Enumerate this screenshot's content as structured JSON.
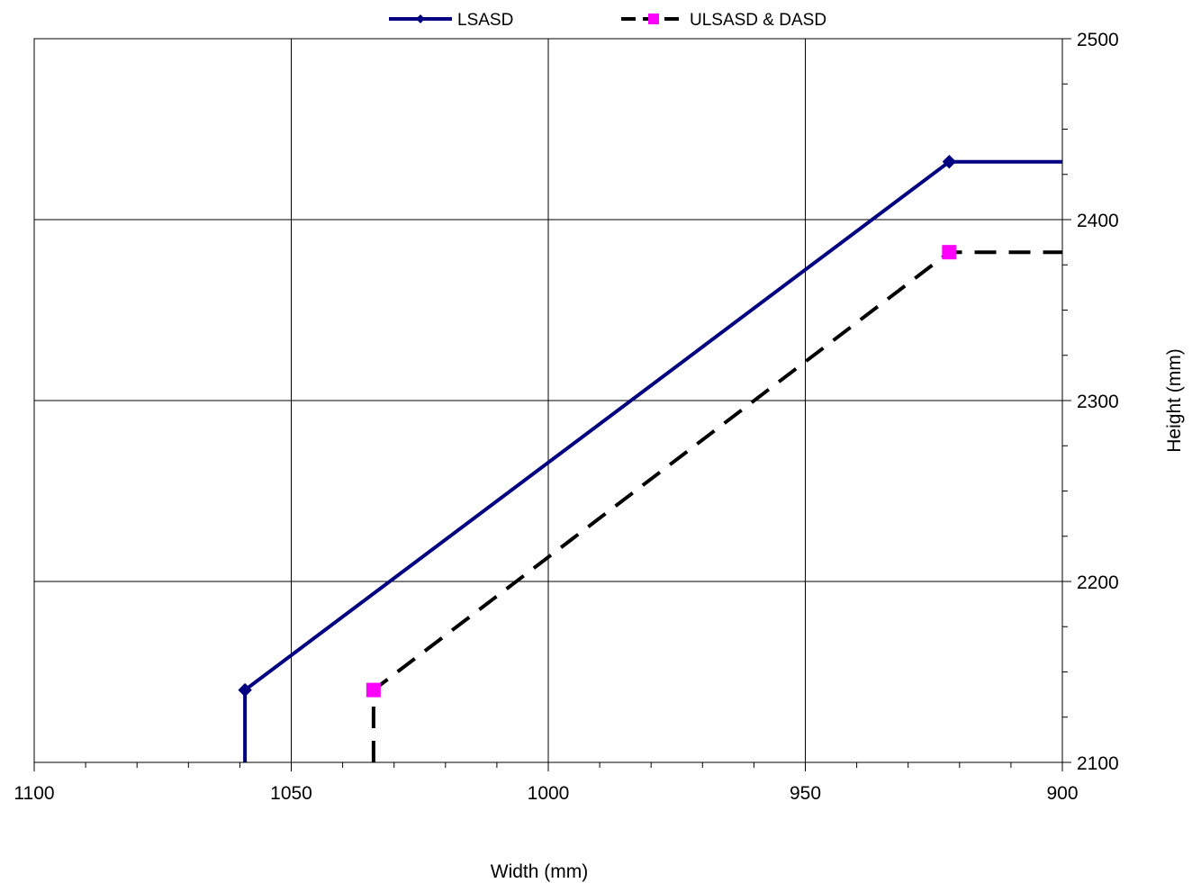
{
  "chart_data": {
    "type": "line",
    "title": "",
    "xlabel": "Width (mm)",
    "ylabel": "Height (mm)",
    "x_reversed": true,
    "xlim": [
      900,
      1100
    ],
    "ylim": [
      2100,
      2500
    ],
    "x_ticks": [
      1100,
      1050,
      1000,
      950,
      900
    ],
    "y_ticks": [
      2100,
      2200,
      2300,
      2400,
      2500
    ],
    "x_minor_step": 10,
    "y_minor_step": 25,
    "grid": true,
    "y_axis_position": "right",
    "legend_position": "top",
    "series": [
      {
        "name": "LSASD",
        "color": "#000080",
        "style": "solid",
        "marker": "diamond",
        "x": [
          1059,
          1059,
          922,
          900
        ],
        "y": [
          2100,
          2140,
          2432,
          2432
        ],
        "marker_points": [
          [
            1059,
            2140
          ],
          [
            922,
            2432
          ]
        ]
      },
      {
        "name": "ULSASD & DASD",
        "color": "#000000",
        "marker_color": "#ff00ff",
        "style": "dashed",
        "marker": "square",
        "x": [
          1034,
          1034,
          922,
          900
        ],
        "y": [
          2100,
          2140,
          2382,
          2382
        ],
        "marker_points": [
          [
            1034,
            2140
          ],
          [
            922,
            2382
          ]
        ]
      }
    ]
  }
}
